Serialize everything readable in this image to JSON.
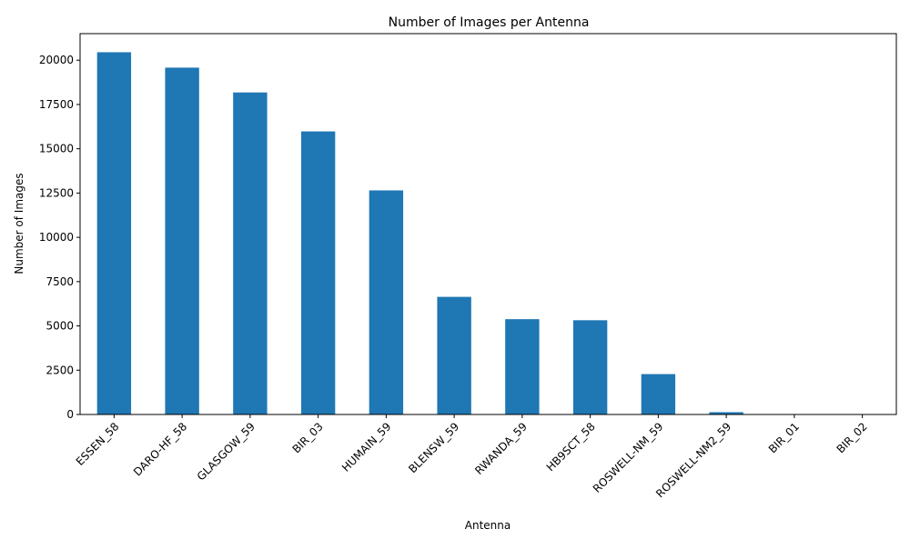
{
  "chart_data": {
    "type": "bar",
    "title": "Number of Images per Antenna",
    "xlabel": "Antenna",
    "ylabel": "Number of Images",
    "categories": [
      "ESSEN_58",
      "DARO-HF_58",
      "GLASGOW_59",
      "BIR_03",
      "HUMAIN_59",
      "BLENSW_59",
      "RWANDA_59",
      "HB9SCT_58",
      "ROSWELL-NM_59",
      "ROSWELL-NM2_59",
      "BIR_01",
      "BIR_02"
    ],
    "values": [
      20450,
      19580,
      18180,
      15980,
      12650,
      6640,
      5380,
      5320,
      2280,
      130,
      5,
      3
    ],
    "ylim": [
      0,
      21500
    ],
    "yticks": [
      0,
      2500,
      5000,
      7500,
      10000,
      12500,
      15000,
      17500,
      20000
    ],
    "bar_color": "#1f77b4",
    "grid": false,
    "x_tick_rotation_deg": 45
  }
}
